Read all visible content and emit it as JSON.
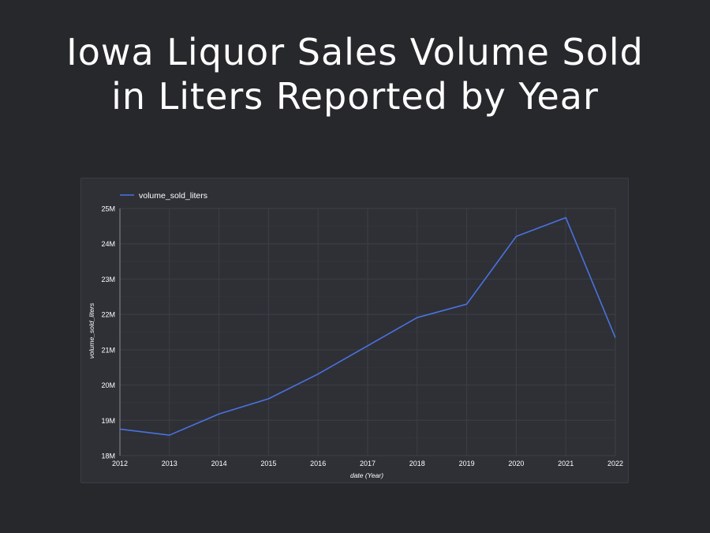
{
  "page": {
    "title_line1": "Iowa Liquor Sales Volume Sold",
    "title_line2": "in Liters Reported by Year"
  },
  "colors": {
    "background": "#27282b",
    "panel": "#2e3036",
    "line": "#4a72e0",
    "grid": "#3d3f46",
    "text": "#ffffff"
  },
  "chart_data": {
    "type": "line",
    "title": "Iowa Liquor Sales Volume Sold in Liters Reported by Year",
    "xlabel": "date (Year)",
    "ylabel": "volume_sold_liters",
    "x": [
      "2012",
      "2013",
      "2014",
      "2015",
      "2016",
      "2017",
      "2018",
      "2019",
      "2020",
      "2021",
      "2022"
    ],
    "series": [
      {
        "name": "volume_sold_liters",
        "values": [
          18750000,
          18580000,
          19180000,
          19610000,
          20310000,
          21110000,
          21910000,
          22290000,
          24210000,
          24740000,
          21340000
        ]
      }
    ],
    "ylim": [
      18000000,
      25000000
    ],
    "yticks": [
      18000000,
      19000000,
      20000000,
      21000000,
      22000000,
      23000000,
      24000000,
      25000000
    ],
    "ytick_labels": [
      "18M",
      "19M",
      "20M",
      "21M",
      "22M",
      "23M",
      "24M",
      "25M"
    ],
    "legend": "top-left",
    "grid": true
  }
}
